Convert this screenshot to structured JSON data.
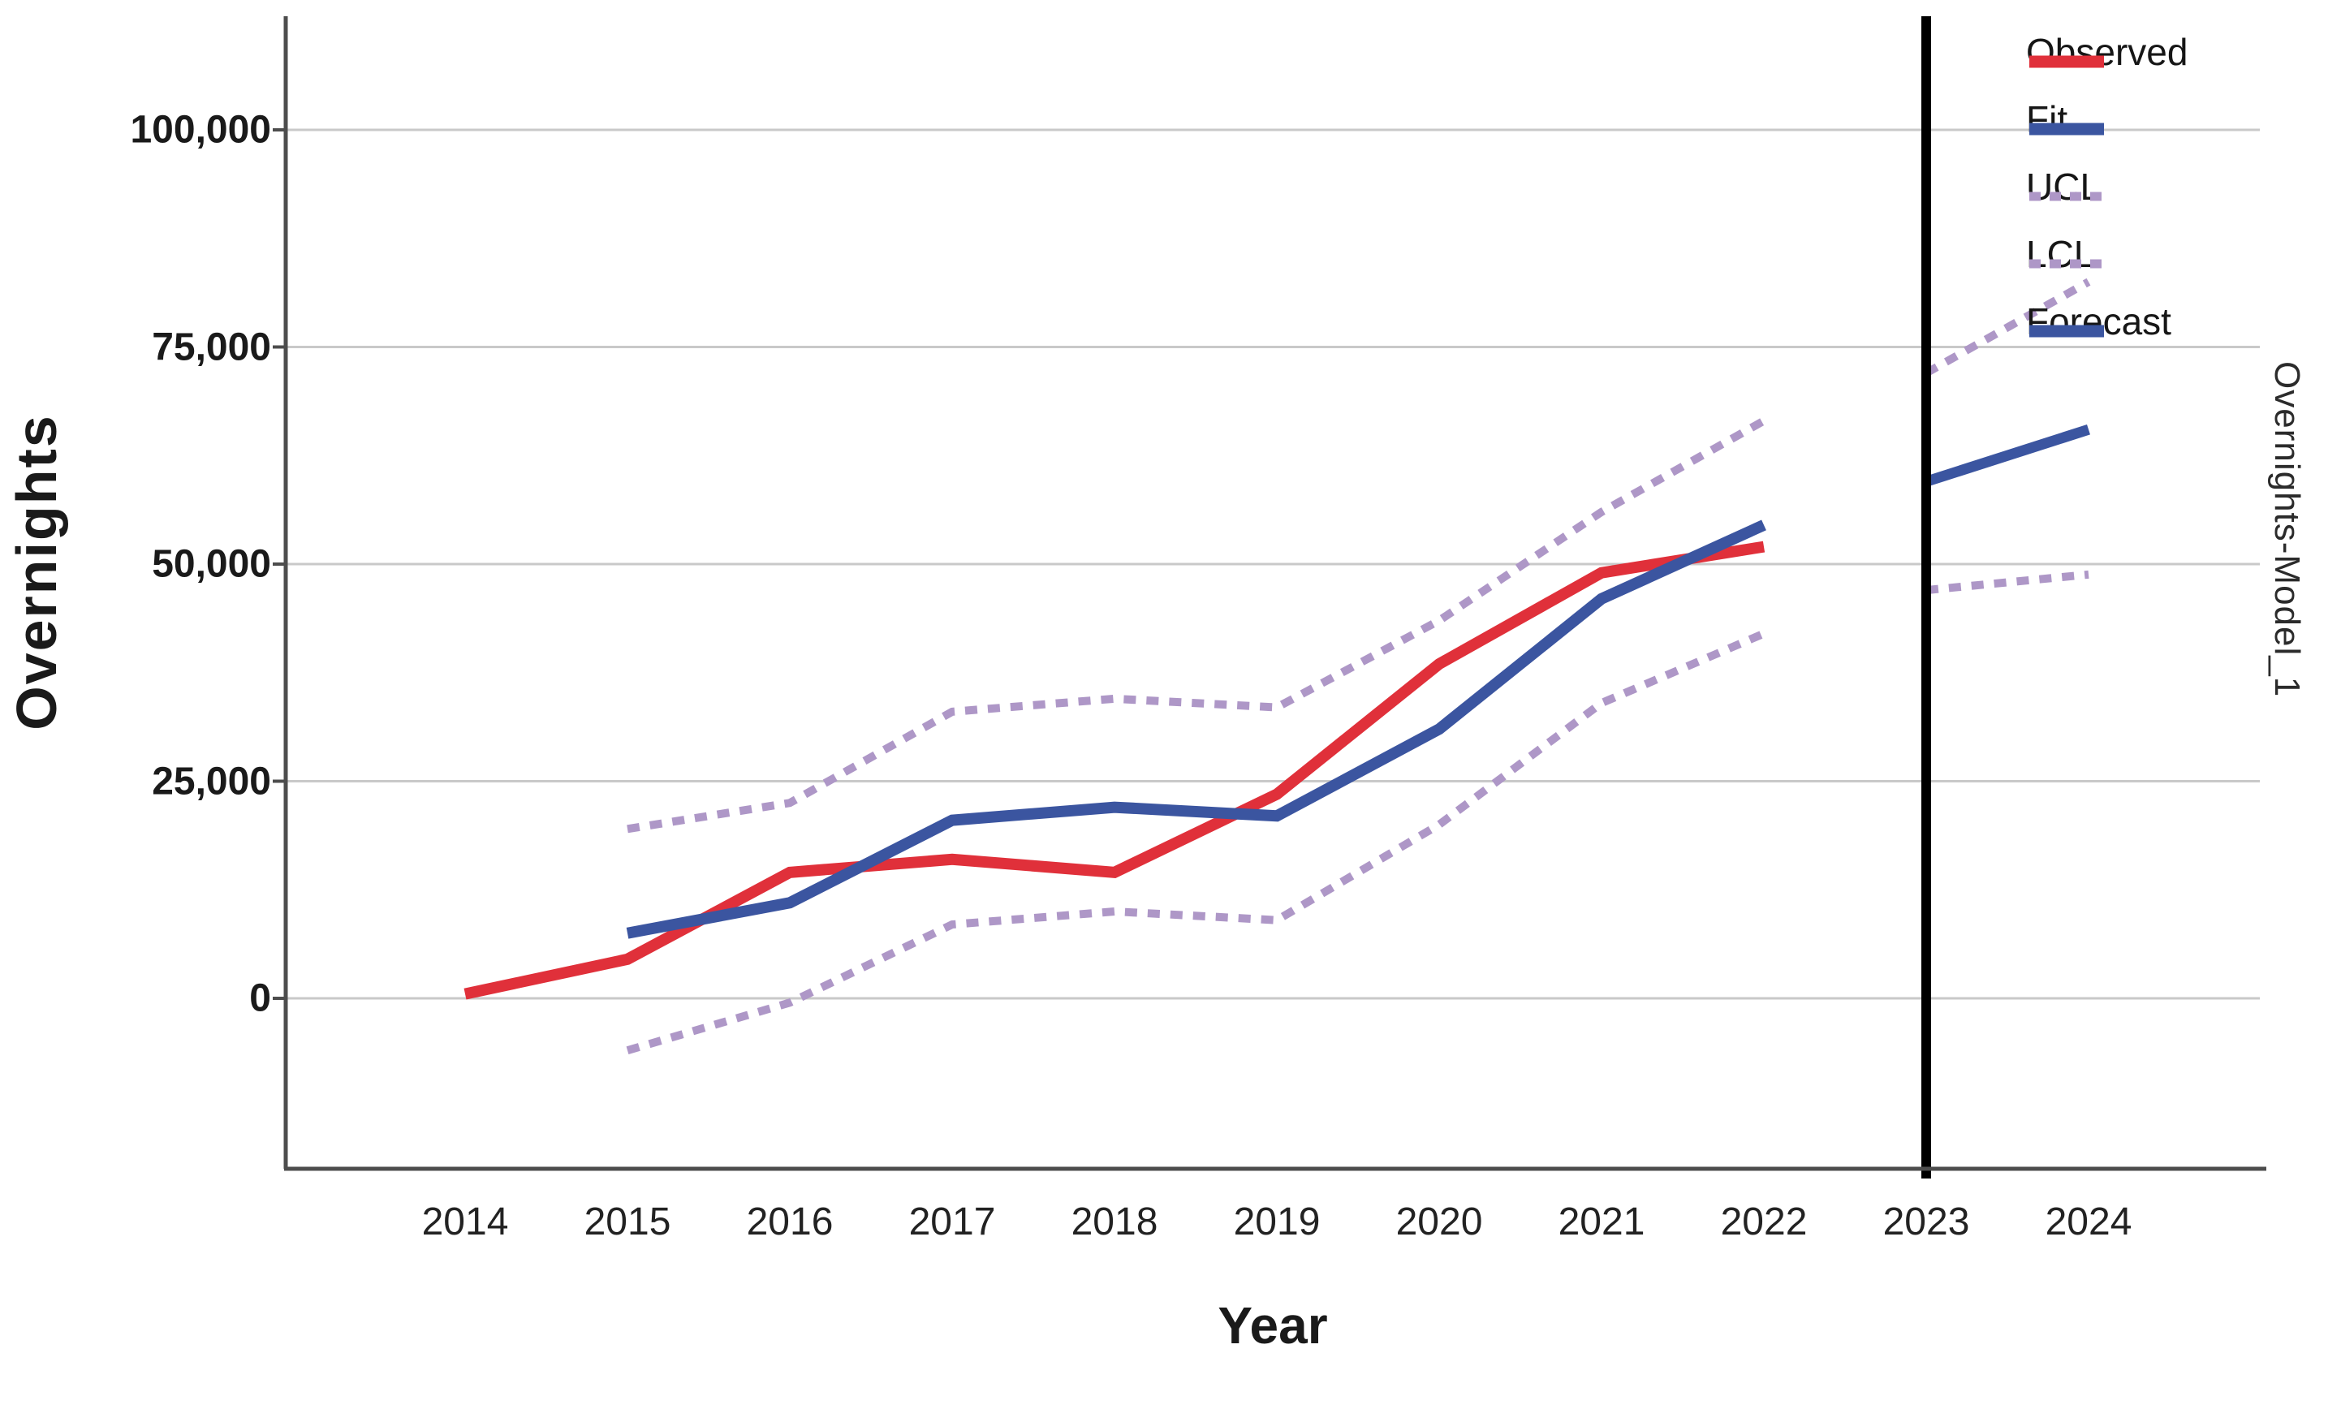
{
  "chart_data": {
    "type": "line",
    "title": "",
    "xlabel": "Year",
    "ylabel": "Overnights",
    "right_label": "Overnights-Model_1",
    "x_ticks": [
      "2014",
      "2015",
      "2016",
      "2017",
      "2018",
      "2019",
      "2020",
      "2021",
      "2022",
      "2023",
      "2024"
    ],
    "y_ticks": [
      {
        "label": "0",
        "value": 0
      },
      {
        "label": "25,000",
        "value": 25000
      },
      {
        "label": "50,000",
        "value": 50000
      },
      {
        "label": "75,000",
        "value": 75000
      },
      {
        "label": "100,000",
        "value": 100000
      }
    ],
    "ylim": [
      -19600,
      113200
    ],
    "grid": true,
    "legend_position": "top-right",
    "forecast_separator_year": 2023,
    "colors": {
      "observed": "#e0303a",
      "fit": "#3b55a0",
      "confidence": "#ae97c7",
      "forecast": "#3b55a0",
      "separator": "#000000",
      "gridline": "#c9c9c9",
      "axis": "#4d4d4d"
    },
    "series": [
      {
        "name": "Observed",
        "color": "#e0303a",
        "dash": false,
        "width": 14,
        "segments": [
          [
            [
              2014,
              500
            ],
            [
              2015,
              4500
            ],
            [
              2016,
              14500
            ],
            [
              2017,
              16000
            ],
            [
              2018,
              14500
            ],
            [
              2019,
              23500
            ],
            [
              2020,
              38500
            ],
            [
              2021,
              49000
            ],
            [
              2022,
              52000
            ]
          ]
        ]
      },
      {
        "name": "Fit",
        "color": "#3b55a0",
        "dash": false,
        "width": 14,
        "segments": [
          [
            [
              2015,
              7500
            ],
            [
              2016,
              11000
            ],
            [
              2017,
              20500
            ],
            [
              2018,
              22000
            ],
            [
              2019,
              21000
            ],
            [
              2020,
              31000
            ],
            [
              2021,
              46000
            ],
            [
              2022,
              54500
            ]
          ]
        ]
      },
      {
        "name": "UCL",
        "color": "#ae97c7",
        "dash": true,
        "width": 10,
        "segments": [
          [
            [
              2015,
              19500
            ],
            [
              2016,
              22500
            ],
            [
              2017,
              33000
            ],
            [
              2018,
              34500
            ],
            [
              2019,
              33500
            ],
            [
              2020,
              43500
            ],
            [
              2021,
              56000
            ],
            [
              2022,
              66500
            ]
          ],
          [
            [
              2023,
              72000
            ],
            [
              2024,
              82500
            ]
          ]
        ]
      },
      {
        "name": "LCL",
        "color": "#ae97c7",
        "dash": true,
        "width": 10,
        "segments": [
          [
            [
              2015,
              -6000
            ],
            [
              2016,
              -500
            ],
            [
              2017,
              8500
            ],
            [
              2018,
              10000
            ],
            [
              2019,
              9000
            ],
            [
              2020,
              20000
            ],
            [
              2021,
              34000
            ],
            [
              2022,
              42000
            ]
          ],
          [
            [
              2023,
              47000
            ],
            [
              2024,
              48800
            ]
          ]
        ]
      },
      {
        "name": "Forecast",
        "color": "#3b55a0",
        "dash": false,
        "width": 13,
        "segments": [
          [
            [
              2023,
              59500
            ],
            [
              2024,
              65500
            ]
          ]
        ]
      }
    ]
  }
}
